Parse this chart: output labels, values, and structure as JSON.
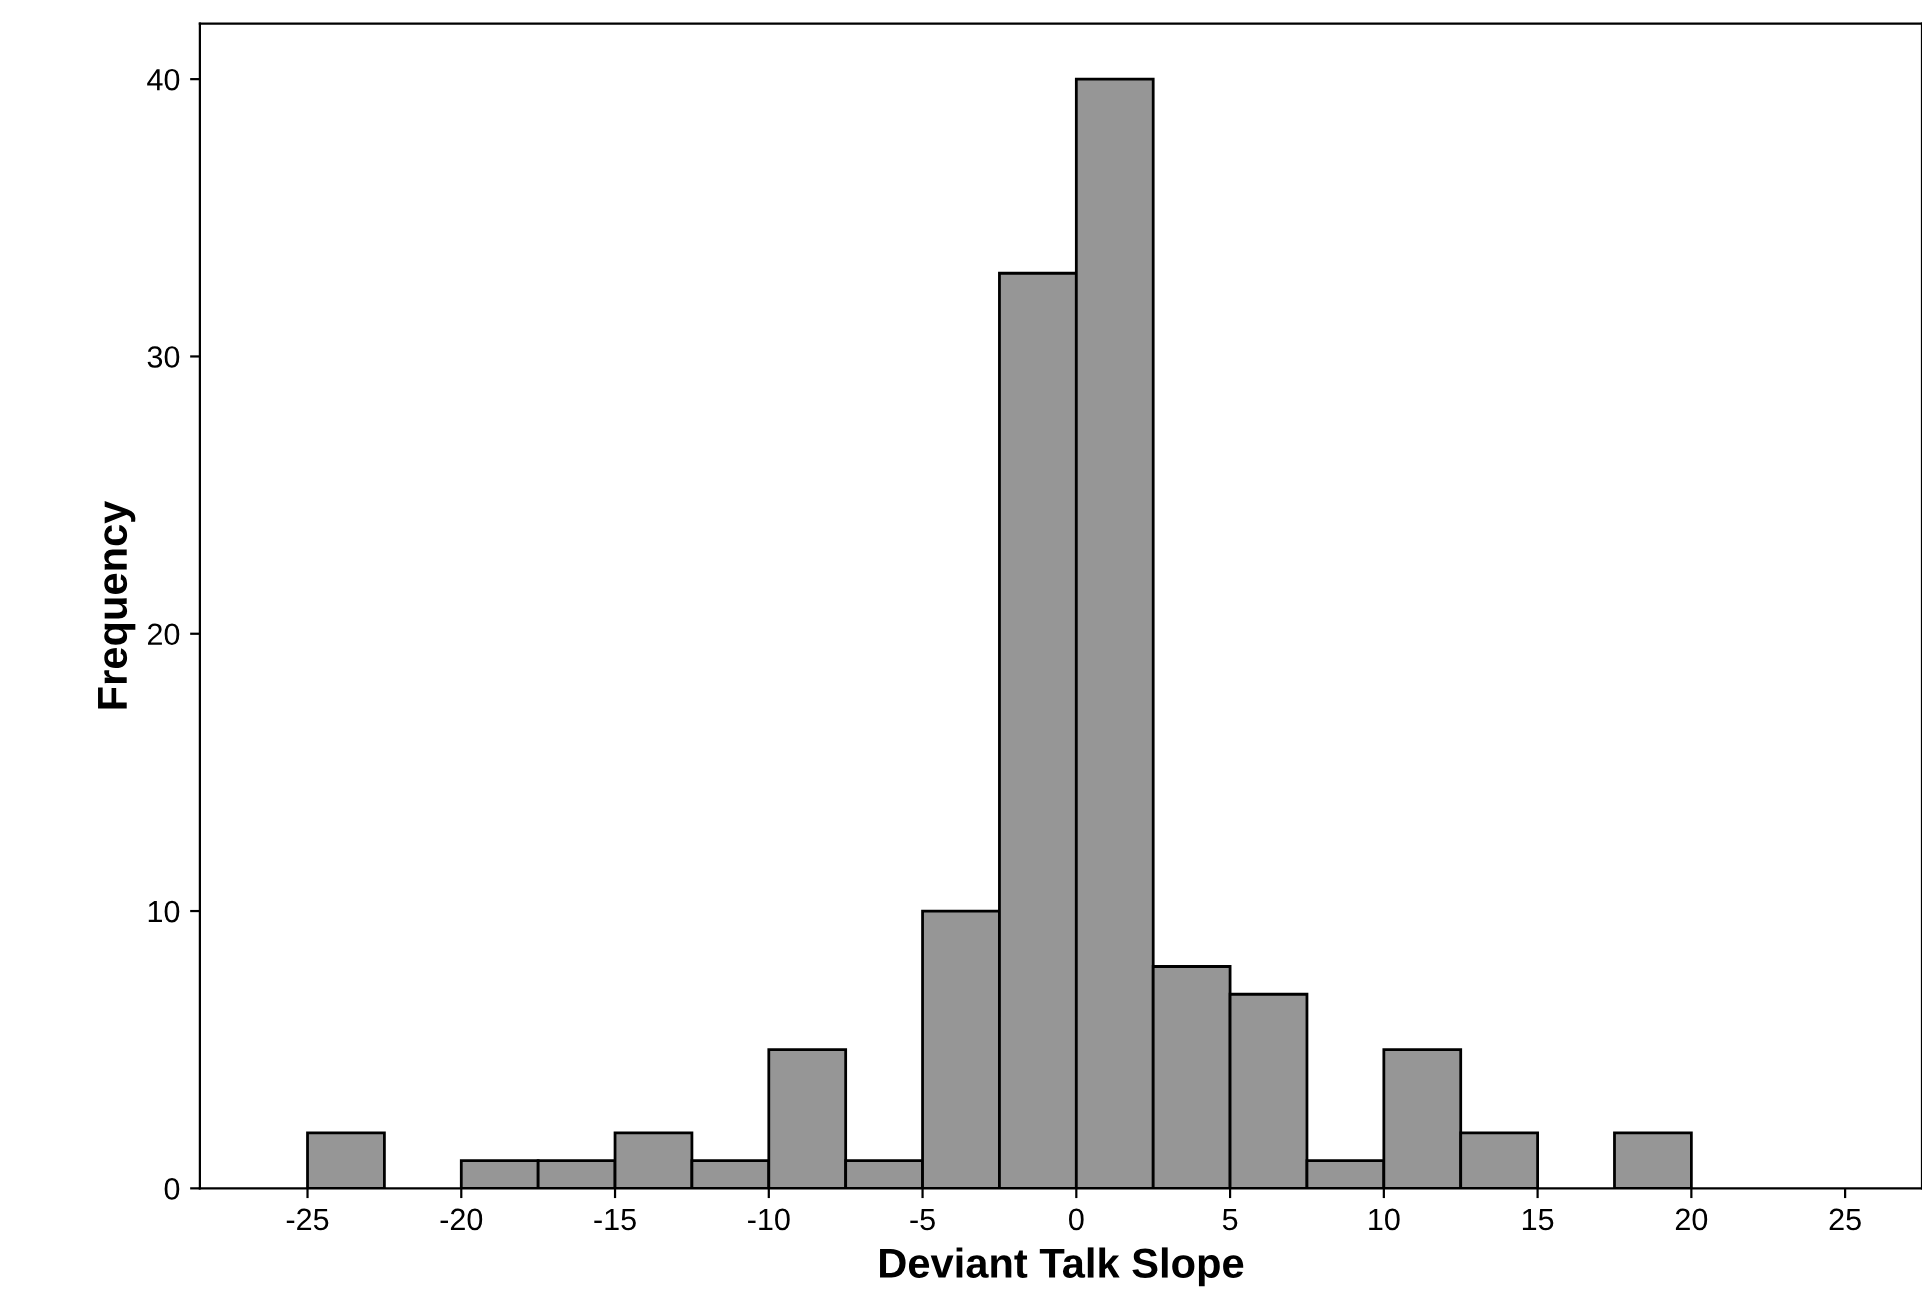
{
  "chart_data": {
    "type": "histogram",
    "xlabel": "Deviant Talk Slope",
    "ylabel": "Frequency",
    "bins": [
      -25,
      -22.5,
      -20,
      -17.5,
      -15,
      -12.5,
      -10,
      -7.5,
      -5,
      -2.5,
      0,
      2.5,
      5,
      7.5,
      10,
      12.5,
      15,
      17.5,
      20
    ],
    "values": [
      2,
      0,
      1,
      1,
      2,
      1,
      5,
      1,
      10,
      33,
      40,
      8,
      7,
      1,
      5,
      2,
      0,
      2
    ],
    "color": "#969696",
    "xlim": [
      -28.5,
      27.5
    ],
    "xticks": [
      -25,
      -20,
      -15,
      -10,
      -5,
      0,
      5,
      10,
      15,
      20,
      25
    ],
    "ylim": [
      0,
      42
    ],
    "yticks": [
      0,
      10,
      20,
      30,
      40
    ],
    "grid": false
  }
}
